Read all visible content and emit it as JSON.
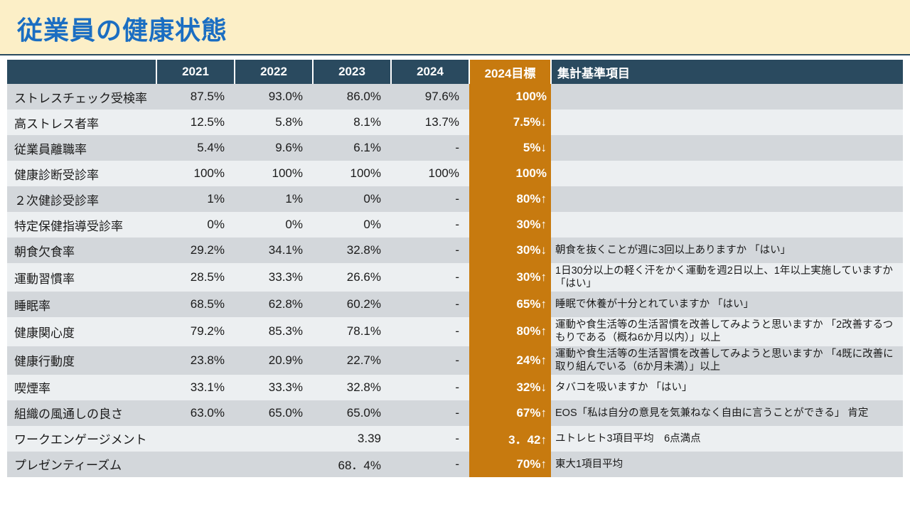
{
  "title": "従業員の健康状態",
  "colors": {
    "title_bg": "#fcefc7",
    "title_text": "#1b6ec2",
    "header_bg": "#2a4a5f",
    "target_bg": "#c77a0f",
    "row_odd": "#d3d7db",
    "row_even": "#eceff1"
  },
  "headers": {
    "blank": "",
    "y2021": "2021",
    "y2022": "2022",
    "y2023": "2023",
    "y2024": "2024",
    "target": "2024目標",
    "note": "集計基準項目"
  },
  "rows": [
    {
      "label": "ストレスチェック受検率",
      "y2021": "87.5%",
      "y2022": "93.0%",
      "y2023": "86.0%",
      "y2024": "97.6%",
      "target": "100%",
      "note": ""
    },
    {
      "label": "高ストレス者率",
      "y2021": "12.5%",
      "y2022": "5.8%",
      "y2023": "8.1%",
      "y2024": "13.7%",
      "target": "7.5%↓",
      "note": ""
    },
    {
      "label": "従業員離職率",
      "y2021": "5.4%",
      "y2022": "9.6%",
      "y2023": "6.1%",
      "y2024": "-",
      "target": "5%↓",
      "note": ""
    },
    {
      "label": "健康診断受診率",
      "y2021": "100%",
      "y2022": "100%",
      "y2023": "100%",
      "y2024": "100%",
      "target": "100%",
      "note": ""
    },
    {
      "label": "２次健診受診率",
      "y2021": "1%",
      "y2022": "1%",
      "y2023": "0%",
      "y2024": "-",
      "target": "80%↑",
      "note": ""
    },
    {
      "label": "特定保健指導受診率",
      "y2021": "0%",
      "y2022": "0%",
      "y2023": "0%",
      "y2024": "-",
      "target": "30%↑",
      "note": ""
    },
    {
      "label": "朝食欠食率",
      "y2021": "29.2%",
      "y2022": "34.1%",
      "y2023": "32.8%",
      "y2024": "-",
      "target": "30%↓",
      "note": "朝食を抜くことが週に3回以上ありますか 「はい」"
    },
    {
      "label": "運動習慣率",
      "y2021": "28.5%",
      "y2022": "33.3%",
      "y2023": "26.6%",
      "y2024": "-",
      "target": "30%↑",
      "note": "1日30分以上の軽く汗をかく運動を週2日以上、1年以上実施していますか 「はい」"
    },
    {
      "label": "睡眠率",
      "y2021": "68.5%",
      "y2022": "62.8%",
      "y2023": "60.2%",
      "y2024": "-",
      "target": "65%↑",
      "note": "睡眠で休養が十分とれていますか 「はい」"
    },
    {
      "label": "健康関心度",
      "y2021": "79.2%",
      "y2022": "85.3%",
      "y2023": "78.1%",
      "y2024": "-",
      "target": "80%↑",
      "note": "運動や食生活等の生活習慣を改善してみようと思いますか 「2改善するつもりである（概ね6か月以内）」以上"
    },
    {
      "label": "健康行動度",
      "y2021": "23.8%",
      "y2022": "20.9%",
      "y2023": "22.7%",
      "y2024": "-",
      "target": "24%↑",
      "note": "運動や食生活等の生活習慣を改善してみようと思いますか 「4既に改善に取り組んでいる（6か月未満）」以上"
    },
    {
      "label": "喫煙率",
      "y2021": "33.1%",
      "y2022": "33.3%",
      "y2023": "32.8%",
      "y2024": "-",
      "target": "32%↓",
      "note": "タバコを吸いますか 「はい」"
    },
    {
      "label": "組織の風通しの良さ",
      "y2021": "63.0%",
      "y2022": "65.0%",
      "y2023": "65.0%",
      "y2024": "-",
      "target": "67%↑",
      "note": "EOS「私は自分の意見を気兼ねなく自由に言うことができる」 肯定"
    },
    {
      "label": "ワークエンゲージメント",
      "y2021": "",
      "y2022": "",
      "y2023": "3.39",
      "y2024": "-",
      "target": "3．42↑",
      "note": "ユトレヒト3項目平均　6点満点"
    },
    {
      "label": "プレゼンティーズム",
      "y2021": "",
      "y2022": "",
      "y2023": "68．4%",
      "y2024": "-",
      "target": "70%↑",
      "note": "東大1項目平均"
    }
  ]
}
